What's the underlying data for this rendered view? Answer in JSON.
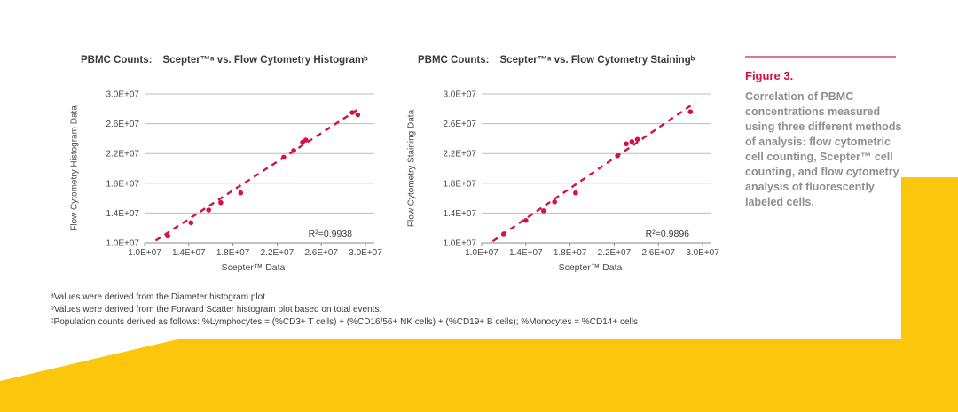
{
  "colors": {
    "accent_red": "#d31245",
    "pink_rule": "#e0788d",
    "yellow": "#fcc60d",
    "gridline": "#bdbdbd",
    "axis_line": "#8a8a8a",
    "text_dark": "#3a3a3a",
    "tick_text": "#4a4a4a",
    "caption_gray": "#8f8f8f",
    "footnote_text": "#3b3b3b"
  },
  "figure_caption": {
    "heading": "Figure 3.",
    "body": "Correlation of PBMC concentrations measured using three different methods of analysis: flow cytometric cell counting, Scepter™ cell counting, and flow cytometry analysis of fluorescently labeled cells."
  },
  "footnotes": {
    "lines": [
      "ᵃValues were derived from the Diameter histogram plot",
      "ᵇValues were derived from the Forward Scatter histogram plot based on total events.",
      "ᶜPopulation counts derived as follows: %Lymphocytes = (%CD3+ T cells) + (%CD16/56+ NK cells) + (%CD19+ B cells); %Monocytes = %CD14+ cells"
    ]
  },
  "chart_data": [
    {
      "type": "scatter",
      "title_prefix": "PBMC Counts:",
      "title": "Scepter™ᵃ vs. Flow Cytometry Histogramᵇ",
      "xlabel": "Scepter™ Data",
      "ylabel": "Flow Cytometry Histogram Data",
      "x_tick_labels": [
        "1.0E+07",
        "1.4E+07",
        "1.8E+07",
        "2.2E+07",
        "2.6E+07",
        "3.0E+07"
      ],
      "y_tick_labels": [
        "1.0E+07",
        "1.4E+07",
        "1.8E+07",
        "2.2E+07",
        "2.6E+07",
        "3.0E+07"
      ],
      "x_tick_values": [
        10000000,
        14000000,
        18000000,
        22000000,
        26000000,
        30000000
      ],
      "y_tick_values": [
        10000000,
        14000000,
        18000000,
        22000000,
        26000000,
        30000000
      ],
      "xlim": [
        10000000,
        30800000
      ],
      "ylim": [
        10000000,
        30000000
      ],
      "grid": "horizontal",
      "legend": "none",
      "points": [
        [
          12100000,
          10900000
        ],
        [
          14200000,
          12700000
        ],
        [
          15800000,
          14400000
        ],
        [
          16900000,
          15400000
        ],
        [
          18700000,
          16700000
        ],
        [
          22600000,
          21500000
        ],
        [
          23500000,
          22400000
        ],
        [
          24300000,
          23500000
        ],
        [
          24600000,
          23800000
        ],
        [
          28800000,
          27500000
        ],
        [
          29300000,
          27200000
        ]
      ],
      "trendline": {
        "x1": 11000000,
        "y1": 10300000,
        "x2": 29500000,
        "y2": 28100000
      },
      "r_squared_label": "R²=0.9938"
    },
    {
      "type": "scatter",
      "title_prefix": "PBMC Counts:",
      "title": "Scepter™ᵃ vs. Flow Cytometry Stainingᵇ",
      "xlabel": "Scepter™ Data",
      "ylabel": "Flow Cytometry Staining Data",
      "x_tick_labels": [
        "1.0E+07",
        "1.4E+07",
        "1.8E+07",
        "2.2E+07",
        "2.6E+07",
        "3.0E+07"
      ],
      "y_tick_labels": [
        "1.0E+07",
        "1.4E+07",
        "1.8E+07",
        "2.2E+07",
        "2.6E+07",
        "3.0E+07"
      ],
      "x_tick_values": [
        10000000,
        14000000,
        18000000,
        22000000,
        26000000,
        30000000
      ],
      "y_tick_values": [
        10000000,
        14000000,
        18000000,
        22000000,
        26000000,
        30000000
      ],
      "xlim": [
        10000000,
        30800000
      ],
      "ylim": [
        10000000,
        30000000
      ],
      "grid": "horizontal",
      "legend": "none",
      "points": [
        [
          12000000,
          11200000
        ],
        [
          14000000,
          13000000
        ],
        [
          15600000,
          14300000
        ],
        [
          16600000,
          15500000
        ],
        [
          18500000,
          16700000
        ],
        [
          22300000,
          21700000
        ],
        [
          23100000,
          23300000
        ],
        [
          23600000,
          23600000
        ],
        [
          24100000,
          23900000
        ],
        [
          28900000,
          27600000
        ]
      ],
      "trendline": {
        "x1": 11000000,
        "y1": 10200000,
        "x2": 29300000,
        "y2": 28800000
      },
      "r_squared_label": "R²=0.9896"
    }
  ]
}
